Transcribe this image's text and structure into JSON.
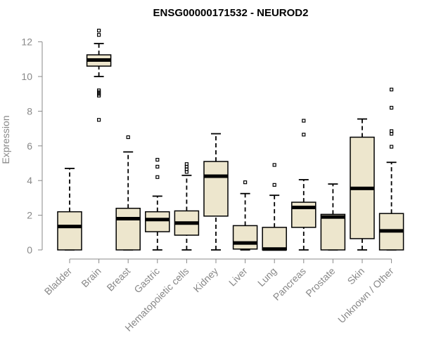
{
  "chart_data": {
    "type": "box",
    "title": "ENSG00000171532 - NEUROD2",
    "xlabel": "",
    "ylabel": "Expression",
    "ylim": [
      0,
      12.5
    ],
    "yticks": [
      0,
      2,
      4,
      6,
      8,
      10,
      12
    ],
    "grid": false,
    "legend": "none",
    "colors": {
      "box_fill": "#ede6cd",
      "box_stroke": "#000000",
      "axis": "#888888"
    },
    "categories": [
      "Bladder",
      "Brain",
      "Breast",
      "Gastric",
      "Hematopoietic cells",
      "Kidney",
      "Liver",
      "Lung",
      "Pancreas",
      "Prostate",
      "Skin",
      "Unknown / Other"
    ],
    "boxes": [
      {
        "category": "Bladder",
        "whisker_low": 0,
        "q1": 0,
        "median": 1.35,
        "q3": 2.2,
        "whisker_high": 4.7,
        "outliers": []
      },
      {
        "category": "Brain",
        "whisker_low": 10.0,
        "q1": 10.6,
        "median": 10.95,
        "q3": 11.25,
        "whisker_high": 11.9,
        "outliers": [
          12.4,
          12.65,
          9.2,
          9.1,
          9.0,
          8.9,
          7.5
        ]
      },
      {
        "category": "Breast",
        "whisker_low": 0,
        "q1": 0,
        "median": 1.8,
        "q3": 2.4,
        "whisker_high": 5.65,
        "outliers": [
          6.5
        ]
      },
      {
        "category": "Gastric",
        "whisker_low": 0,
        "q1": 1.05,
        "median": 1.75,
        "q3": 2.2,
        "whisker_high": 3.1,
        "outliers": [
          5.2,
          4.8,
          4.2
        ]
      },
      {
        "category": "Hematopoietic cells",
        "whisker_low": 0,
        "q1": 0.85,
        "median": 1.55,
        "q3": 2.25,
        "whisker_high": 4.3,
        "outliers": [
          4.5,
          4.65,
          4.8,
          4.95
        ]
      },
      {
        "category": "Kidney",
        "whisker_low": 0,
        "q1": 1.95,
        "median": 4.25,
        "q3": 5.1,
        "whisker_high": 6.7,
        "outliers": []
      },
      {
        "category": "Liver",
        "whisker_low": 0,
        "q1": 0.05,
        "median": 0.4,
        "q3": 1.4,
        "whisker_high": 3.25,
        "outliers": [
          3.9
        ]
      },
      {
        "category": "Lung",
        "whisker_low": 0,
        "q1": 0,
        "median": 0.05,
        "q3": 1.3,
        "whisker_high": 3.15,
        "outliers": [
          3.75,
          4.9
        ]
      },
      {
        "category": "Pancreas",
        "whisker_low": 0,
        "q1": 1.3,
        "median": 2.45,
        "q3": 2.75,
        "whisker_high": 4.05,
        "outliers": [
          6.65,
          7.45
        ]
      },
      {
        "category": "Prostate",
        "whisker_low": 0,
        "q1": 0,
        "median": 1.9,
        "q3": 2.05,
        "whisker_high": 3.8,
        "outliers": []
      },
      {
        "category": "Skin",
        "whisker_low": 0,
        "q1": 0.65,
        "median": 3.55,
        "q3": 6.5,
        "whisker_high": 7.55,
        "outliers": []
      },
      {
        "category": "Unknown / Other",
        "whisker_low": 0,
        "q1": 0,
        "median": 1.1,
        "q3": 2.1,
        "whisker_high": 5.05,
        "outliers": [
          5.95,
          6.7,
          6.85,
          8.2,
          9.25
        ]
      }
    ]
  }
}
